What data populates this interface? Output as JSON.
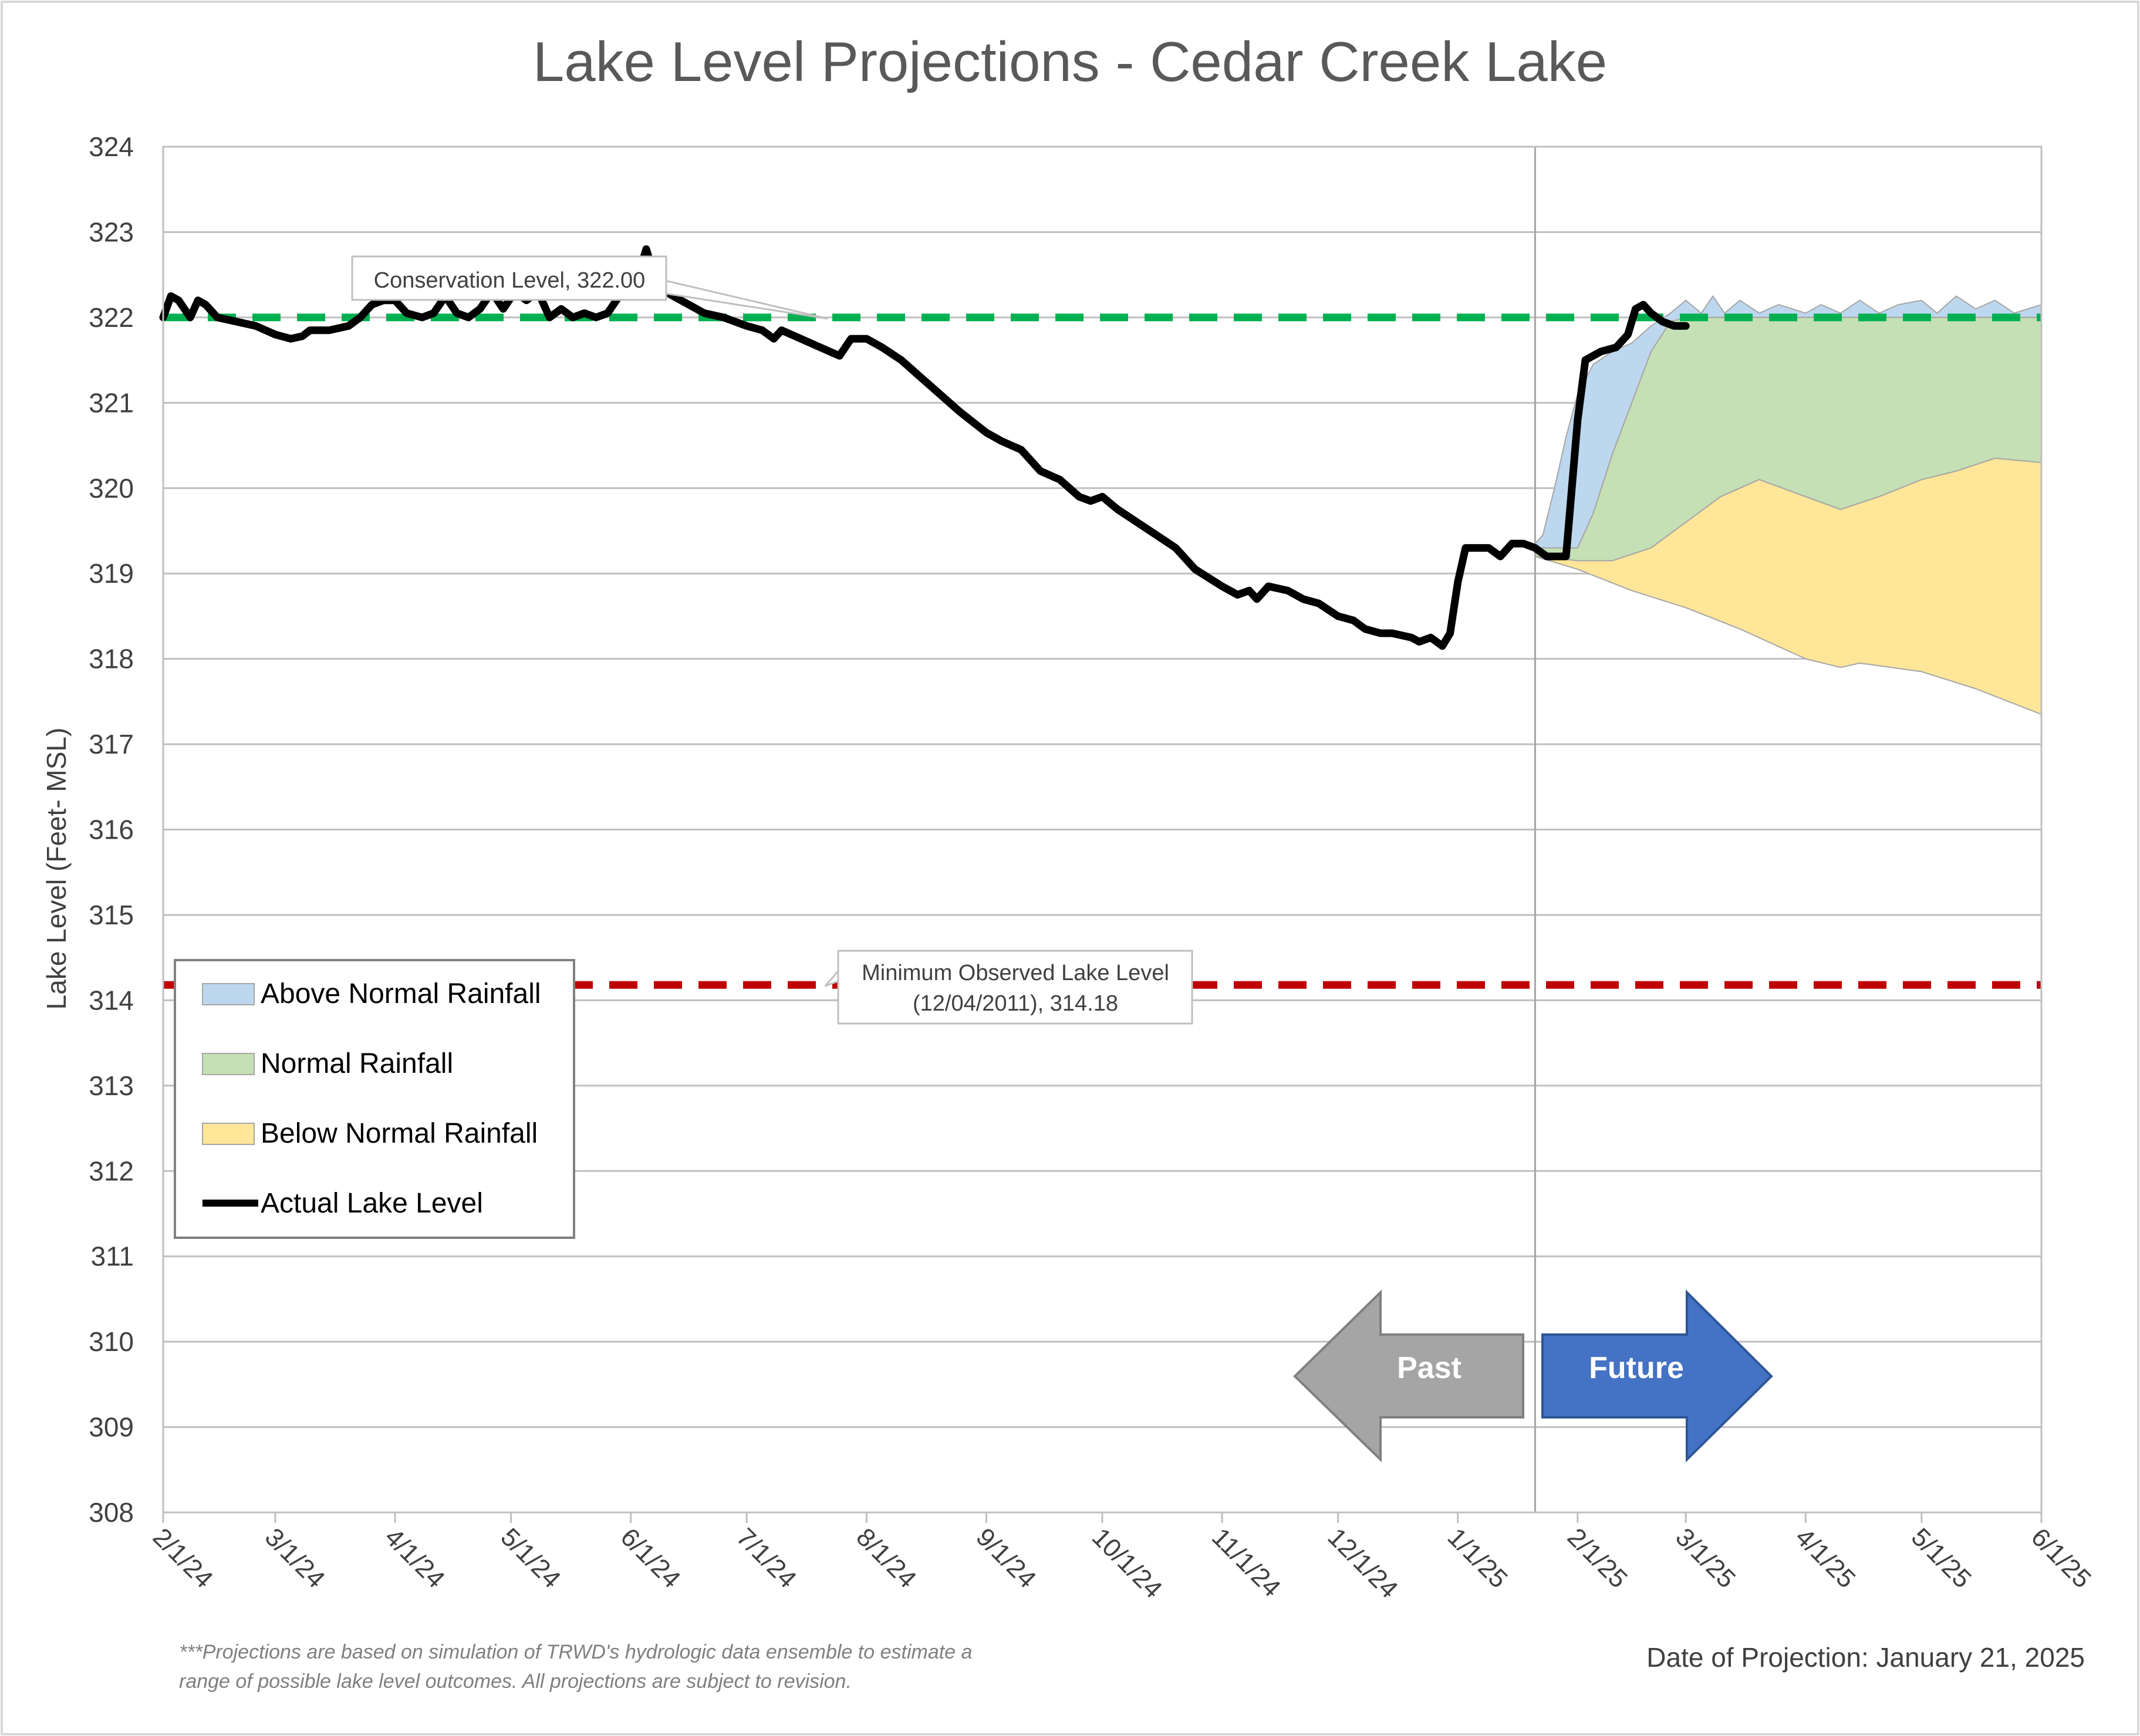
{
  "chart_data": {
    "type": "area",
    "title": "Lake Level Projections - Cedar Creek Lake",
    "ylabel": "Lake Level (Feet- MSL)",
    "xlabel": "",
    "ylim": [
      308,
      324
    ],
    "yticks": [
      308,
      309,
      310,
      311,
      312,
      313,
      314,
      315,
      316,
      317,
      318,
      319,
      320,
      321,
      322,
      323,
      324
    ],
    "xlim": [
      "2024-02-01",
      "2025-06-01"
    ],
    "x_tick_labels": [
      "2/1/24",
      "3/1/24",
      "4/1/24",
      "5/1/24",
      "6/1/24",
      "7/1/24",
      "8/1/24",
      "9/1/24",
      "10/1/24",
      "11/1/24",
      "12/1/24",
      "1/1/25",
      "2/1/25",
      "3/1/25",
      "4/1/25",
      "5/1/25",
      "6/1/25"
    ],
    "x_tick_dates": [
      "2024-02-01",
      "2024-03-01",
      "2024-04-01",
      "2024-05-01",
      "2024-06-01",
      "2024-07-01",
      "2024-08-01",
      "2024-09-01",
      "2024-10-01",
      "2024-11-01",
      "2024-12-01",
      "2025-01-01",
      "2025-02-01",
      "2025-03-01",
      "2025-04-01",
      "2025-05-01",
      "2025-06-01"
    ],
    "grid": "horizontal",
    "legend_position": "bottom-left",
    "projection_date": "2025-01-21",
    "reference_lines": [
      {
        "name": "Conservation Level",
        "value": 322.0,
        "label": "Conservation Level, 322.00",
        "color": "#00b050"
      },
      {
        "name": "Minimum Observed Lake Level",
        "value": 314.18,
        "label_line1": "Minimum Observed Lake Level",
        "label_line2": "(12/04/2011), 314.18",
        "color": "#c00000"
      }
    ],
    "series": [
      {
        "name": "Above Normal Rainfall",
        "kind": "band",
        "color": "#bdd7ee",
        "upper": [
          [
            "2025-01-21",
            319.35
          ],
          [
            "2025-01-23",
            319.45
          ],
          [
            "2025-01-26",
            320.0
          ],
          [
            "2025-01-29",
            320.6
          ],
          [
            "2025-02-01",
            321.1
          ],
          [
            "2025-02-05",
            321.45
          ],
          [
            "2025-02-10",
            321.6
          ],
          [
            "2025-02-15",
            321.7
          ],
          [
            "2025-02-20",
            321.9
          ],
          [
            "2025-02-25",
            322.05
          ],
          [
            "2025-03-01",
            322.2
          ],
          [
            "2025-03-05",
            322.05
          ],
          [
            "2025-03-08",
            322.25
          ],
          [
            "2025-03-11",
            322.05
          ],
          [
            "2025-03-15",
            322.2
          ],
          [
            "2025-03-20",
            322.05
          ],
          [
            "2025-03-25",
            322.15
          ],
          [
            "2025-04-01",
            322.05
          ],
          [
            "2025-04-05",
            322.15
          ],
          [
            "2025-04-10",
            322.05
          ],
          [
            "2025-04-15",
            322.2
          ],
          [
            "2025-04-20",
            322.05
          ],
          [
            "2025-04-25",
            322.15
          ],
          [
            "2025-05-01",
            322.2
          ],
          [
            "2025-05-05",
            322.05
          ],
          [
            "2025-05-10",
            322.25
          ],
          [
            "2025-05-15",
            322.1
          ],
          [
            "2025-05-20",
            322.2
          ],
          [
            "2025-05-25",
            322.05
          ],
          [
            "2025-06-01",
            322.15
          ]
        ],
        "lower": [
          [
            "2025-01-21",
            319.3
          ],
          [
            "2025-02-01",
            319.3
          ],
          [
            "2025-02-05",
            319.7
          ],
          [
            "2025-02-10",
            320.4
          ],
          [
            "2025-02-15",
            321.0
          ],
          [
            "2025-02-20",
            321.6
          ],
          [
            "2025-02-25",
            321.95
          ],
          [
            "2025-03-01",
            322.0
          ],
          [
            "2025-06-01",
            322.0
          ]
        ]
      },
      {
        "name": "Normal Rainfall",
        "kind": "band",
        "color": "#c5e0b4",
        "upper": [
          [
            "2025-01-21",
            319.3
          ],
          [
            "2025-02-01",
            319.3
          ],
          [
            "2025-02-05",
            319.7
          ],
          [
            "2025-02-10",
            320.4
          ],
          [
            "2025-02-15",
            321.0
          ],
          [
            "2025-02-20",
            321.6
          ],
          [
            "2025-02-25",
            321.95
          ],
          [
            "2025-03-01",
            322.0
          ],
          [
            "2025-06-01",
            322.0
          ]
        ],
        "lower": [
          [
            "2025-01-21",
            319.2
          ],
          [
            "2025-02-01",
            319.15
          ],
          [
            "2025-02-10",
            319.15
          ],
          [
            "2025-02-20",
            319.3
          ],
          [
            "2025-03-01",
            319.6
          ],
          [
            "2025-03-10",
            319.9
          ],
          [
            "2025-03-20",
            320.1
          ],
          [
            "2025-04-01",
            319.9
          ],
          [
            "2025-04-10",
            319.75
          ],
          [
            "2025-04-20",
            319.9
          ],
          [
            "2025-05-01",
            320.1
          ],
          [
            "2025-05-10",
            320.2
          ],
          [
            "2025-05-20",
            320.35
          ],
          [
            "2025-06-01",
            320.3
          ]
        ]
      },
      {
        "name": "Below Normal Rainfall",
        "kind": "band",
        "color": "#ffe699",
        "upper": [
          [
            "2025-01-21",
            319.2
          ],
          [
            "2025-02-01",
            319.15
          ],
          [
            "2025-02-10",
            319.15
          ],
          [
            "2025-02-20",
            319.3
          ],
          [
            "2025-03-01",
            319.6
          ],
          [
            "2025-03-10",
            319.9
          ],
          [
            "2025-03-20",
            320.1
          ],
          [
            "2025-04-01",
            319.9
          ],
          [
            "2025-04-10",
            319.75
          ],
          [
            "2025-04-20",
            319.9
          ],
          [
            "2025-05-01",
            320.1
          ],
          [
            "2025-05-10",
            320.2
          ],
          [
            "2025-05-20",
            320.35
          ],
          [
            "2025-06-01",
            320.3
          ]
        ],
        "lower": [
          [
            "2025-01-21",
            319.2
          ],
          [
            "2025-02-01",
            319.05
          ],
          [
            "2025-02-15",
            318.8
          ],
          [
            "2025-03-01",
            318.6
          ],
          [
            "2025-03-15",
            318.35
          ],
          [
            "2025-04-01",
            318.0
          ],
          [
            "2025-04-10",
            317.9
          ],
          [
            "2025-04-15",
            317.95
          ],
          [
            "2025-05-01",
            317.85
          ],
          [
            "2025-05-15",
            317.65
          ],
          [
            "2025-06-01",
            317.35
          ]
        ]
      },
      {
        "name": "Actual Lake Level",
        "kind": "line",
        "color": "#000000",
        "points": [
          [
            "2024-02-01",
            322.0
          ],
          [
            "2024-02-03",
            322.25
          ],
          [
            "2024-02-05",
            322.2
          ],
          [
            "2024-02-08",
            322.0
          ],
          [
            "2024-02-10",
            322.2
          ],
          [
            "2024-02-12",
            322.15
          ],
          [
            "2024-02-15",
            322.0
          ],
          [
            "2024-02-20",
            321.95
          ],
          [
            "2024-02-25",
            321.9
          ],
          [
            "2024-03-01",
            321.8
          ],
          [
            "2024-03-05",
            321.75
          ],
          [
            "2024-03-08",
            321.78
          ],
          [
            "2024-03-10",
            321.85
          ],
          [
            "2024-03-15",
            321.85
          ],
          [
            "2024-03-20",
            321.9
          ],
          [
            "2024-03-23",
            322.0
          ],
          [
            "2024-03-26",
            322.15
          ],
          [
            "2024-03-29",
            322.2
          ],
          [
            "2024-04-01",
            322.2
          ],
          [
            "2024-04-04",
            322.05
          ],
          [
            "2024-04-08",
            322.0
          ],
          [
            "2024-04-11",
            322.05
          ],
          [
            "2024-04-14",
            322.25
          ],
          [
            "2024-04-17",
            322.05
          ],
          [
            "2024-04-20",
            322.0
          ],
          [
            "2024-04-23",
            322.1
          ],
          [
            "2024-04-26",
            322.3
          ],
          [
            "2024-04-29",
            322.1
          ],
          [
            "2024-05-02",
            322.3
          ],
          [
            "2024-05-05",
            322.2
          ],
          [
            "2024-05-08",
            322.3
          ],
          [
            "2024-05-11",
            322.0
          ],
          [
            "2024-05-14",
            322.1
          ],
          [
            "2024-05-17",
            322.0
          ],
          [
            "2024-05-20",
            322.05
          ],
          [
            "2024-05-23",
            322.0
          ],
          [
            "2024-05-26",
            322.05
          ],
          [
            "2024-05-29",
            322.25
          ],
          [
            "2024-06-01",
            322.3
          ],
          [
            "2024-06-03",
            322.5
          ],
          [
            "2024-06-05",
            322.8
          ],
          [
            "2024-06-08",
            322.35
          ],
          [
            "2024-06-12",
            322.25
          ],
          [
            "2024-06-16",
            322.15
          ],
          [
            "2024-06-20",
            322.05
          ],
          [
            "2024-06-25",
            322.0
          ],
          [
            "2024-07-01",
            321.9
          ],
          [
            "2024-07-05",
            321.85
          ],
          [
            "2024-07-08",
            321.75
          ],
          [
            "2024-07-10",
            321.85
          ],
          [
            "2024-07-15",
            321.75
          ],
          [
            "2024-07-20",
            321.65
          ],
          [
            "2024-07-25",
            321.55
          ],
          [
            "2024-07-28",
            321.75
          ],
          [
            "2024-08-01",
            321.75
          ],
          [
            "2024-08-05",
            321.65
          ],
          [
            "2024-08-10",
            321.5
          ],
          [
            "2024-08-15",
            321.3
          ],
          [
            "2024-08-20",
            321.1
          ],
          [
            "2024-08-25",
            320.9
          ],
          [
            "2024-09-01",
            320.65
          ],
          [
            "2024-09-05",
            320.55
          ],
          [
            "2024-09-10",
            320.45
          ],
          [
            "2024-09-15",
            320.2
          ],
          [
            "2024-09-20",
            320.1
          ],
          [
            "2024-09-25",
            319.9
          ],
          [
            "2024-09-28",
            319.85
          ],
          [
            "2024-10-01",
            319.9
          ],
          [
            "2024-10-05",
            319.75
          ],
          [
            "2024-10-10",
            319.6
          ],
          [
            "2024-10-15",
            319.45
          ],
          [
            "2024-10-20",
            319.3
          ],
          [
            "2024-10-25",
            319.05
          ],
          [
            "2024-11-01",
            318.85
          ],
          [
            "2024-11-05",
            318.75
          ],
          [
            "2024-11-08",
            318.8
          ],
          [
            "2024-11-10",
            318.7
          ],
          [
            "2024-11-13",
            318.85
          ],
          [
            "2024-11-18",
            318.8
          ],
          [
            "2024-11-22",
            318.7
          ],
          [
            "2024-11-26",
            318.65
          ],
          [
            "2024-12-01",
            318.5
          ],
          [
            "2024-12-05",
            318.45
          ],
          [
            "2024-12-08",
            318.35
          ],
          [
            "2024-12-12",
            318.3
          ],
          [
            "2024-12-15",
            318.3
          ],
          [
            "2024-12-20",
            318.25
          ],
          [
            "2024-12-22",
            318.2
          ],
          [
            "2024-12-25",
            318.25
          ],
          [
            "2024-12-28",
            318.15
          ],
          [
            "2024-12-30",
            318.3
          ],
          [
            "2025-01-01",
            318.9
          ],
          [
            "2025-01-03",
            319.3
          ],
          [
            "2025-01-06",
            319.3
          ],
          [
            "2025-01-09",
            319.3
          ],
          [
            "2025-01-12",
            319.2
          ],
          [
            "2025-01-15",
            319.35
          ],
          [
            "2025-01-18",
            319.35
          ],
          [
            "2025-01-21",
            319.3
          ],
          [
            "2025-01-24",
            319.2
          ],
          [
            "2025-01-27",
            319.2
          ],
          [
            "2025-01-29",
            319.2
          ],
          [
            "2025-02-01",
            320.8
          ],
          [
            "2025-02-03",
            321.5
          ],
          [
            "2025-02-07",
            321.6
          ],
          [
            "2025-02-11",
            321.65
          ],
          [
            "2025-02-14",
            321.8
          ],
          [
            "2025-02-16",
            322.1
          ],
          [
            "2025-02-18",
            322.15
          ],
          [
            "2025-02-20",
            322.05
          ],
          [
            "2025-02-23",
            321.95
          ],
          [
            "2025-02-26",
            321.9
          ],
          [
            "2025-03-01",
            321.9
          ]
        ]
      }
    ],
    "legend": [
      "Above Normal Rainfall",
      "Normal Rainfall",
      "Below Normal Rainfall",
      "Actual Lake Level"
    ],
    "annotations": {
      "past_label": "Past",
      "future_label": "Future",
      "footnote_line1": "***Projections are based on simulation of TRWD's hydrologic data ensemble to estimate a",
      "footnote_line2": "range of possible lake level outcomes.  All projections are subject to revision.",
      "projection_date_text": "Date of Projection: January 21, 2025"
    }
  }
}
